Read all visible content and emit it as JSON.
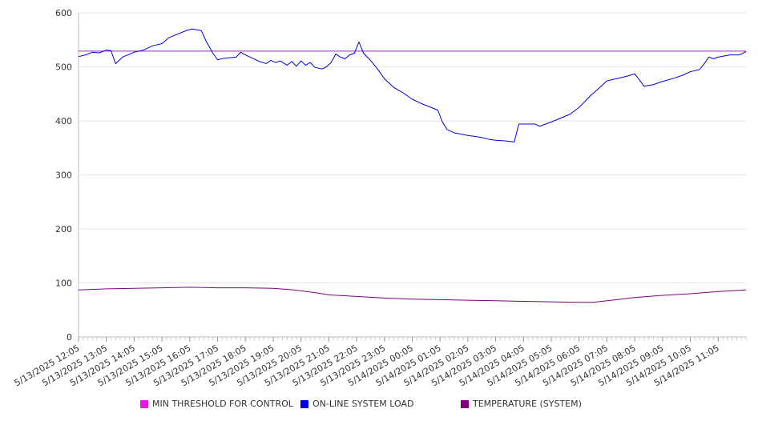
{
  "chart_data": {
    "type": "line",
    "title": "",
    "xlabel": "",
    "ylabel": "",
    "ylim": [
      0,
      600
    ],
    "y_ticks": [
      "0",
      "100",
      "200",
      "300",
      "400",
      "500",
      "600"
    ],
    "x_tick_labels": [
      "5/13/2025 12:05",
      "5/13/2025 13:05",
      "5/13/2025 14:05",
      "5/13/2025 15:05",
      "5/13/2025 16:05",
      "5/13/2025 17:05",
      "5/13/2025 18:05",
      "5/13/2025 19:05",
      "5/13/2025 20:05",
      "5/13/2025 21:05",
      "5/13/2025 22:05",
      "5/13/2025 23:05",
      "5/14/2025 00:05",
      "5/14/2025 01:05",
      "5/14/2025 02:05",
      "5/14/2025 03:05",
      "5/14/2025 04:05",
      "5/14/2025 05:05",
      "5/14/2025 06:05",
      "5/14/2025 07:05",
      "5/14/2025 08:05",
      "5/14/2025 09:05",
      "5/14/2025 10:05",
      "5/14/2025 11:05"
    ],
    "x_range": [
      "5/13/2025 12:05",
      "5/14/2025 12:05"
    ],
    "grid": true,
    "legend_position": "bottom",
    "series": [
      {
        "name": "MIN THRESHOLD FOR CONTROL",
        "color": "#a020c8",
        "swatch_color": "#ee11ee",
        "points": [
          [
            "5/13/2025 12:05",
            529
          ],
          [
            "5/14/2025 12:05",
            529
          ]
        ]
      },
      {
        "name": "ON-LINE SYSTEM LOAD",
        "color": "#0000dd",
        "swatch_color": "#0000ee",
        "points": [
          [
            "5/13/2025 12:05",
            519
          ],
          [
            "5/13/2025 12:20",
            522
          ],
          [
            "5/13/2025 12:35",
            527
          ],
          [
            "5/13/2025 12:50",
            526
          ],
          [
            "5/13/2025 13:05",
            531
          ],
          [
            "5/13/2025 13:15",
            530
          ],
          [
            "5/13/2025 13:25",
            506
          ],
          [
            "5/13/2025 13:40",
            518
          ],
          [
            "5/13/2025 14:05",
            527
          ],
          [
            "5/13/2025 14:25",
            531
          ],
          [
            "5/13/2025 14:45",
            539
          ],
          [
            "5/13/2025 15:05",
            543
          ],
          [
            "5/13/2025 15:20",
            554
          ],
          [
            "5/13/2025 15:40",
            561
          ],
          [
            "5/13/2025 16:00",
            568
          ],
          [
            "5/13/2025 16:10",
            570
          ],
          [
            "5/13/2025 16:30",
            567
          ],
          [
            "5/13/2025 16:40",
            548
          ],
          [
            "5/13/2025 16:55",
            525
          ],
          [
            "5/13/2025 17:05",
            513
          ],
          [
            "5/13/2025 17:20",
            516
          ],
          [
            "5/13/2025 17:45",
            518
          ],
          [
            "5/13/2025 17:55",
            527
          ],
          [
            "5/13/2025 18:05",
            522
          ],
          [
            "5/13/2025 18:20",
            516
          ],
          [
            "5/13/2025 18:35",
            510
          ],
          [
            "5/13/2025 18:50",
            506
          ],
          [
            "5/13/2025 19:00",
            512
          ],
          [
            "5/13/2025 19:10",
            508
          ],
          [
            "5/13/2025 19:20",
            511
          ],
          [
            "5/13/2025 19:35",
            503
          ],
          [
            "5/13/2025 19:45",
            510
          ],
          [
            "5/13/2025 19:55",
            501
          ],
          [
            "5/13/2025 20:05",
            511
          ],
          [
            "5/13/2025 20:15",
            503
          ],
          [
            "5/13/2025 20:25",
            508
          ],
          [
            "5/13/2025 20:35",
            499
          ],
          [
            "5/13/2025 20:50",
            496
          ],
          [
            "5/13/2025 21:00",
            500
          ],
          [
            "5/13/2025 21:10",
            508
          ],
          [
            "5/13/2025 21:20",
            524
          ],
          [
            "5/13/2025 21:30",
            518
          ],
          [
            "5/13/2025 21:40",
            515
          ],
          [
            "5/13/2025 21:50",
            522
          ],
          [
            "5/13/2025 22:00",
            525
          ],
          [
            "5/13/2025 22:10",
            546
          ],
          [
            "5/13/2025 22:20",
            525
          ],
          [
            "5/13/2025 22:35",
            512
          ],
          [
            "5/13/2025 22:50",
            496
          ],
          [
            "5/13/2025 23:05",
            478
          ],
          [
            "5/13/2025 23:25",
            462
          ],
          [
            "5/13/2025 23:45",
            452
          ],
          [
            "5/14/2025 00:05",
            440
          ],
          [
            "5/14/2025 00:25",
            432
          ],
          [
            "5/14/2025 00:45",
            425
          ],
          [
            "5/14/2025 01:00",
            420
          ],
          [
            "5/14/2025 01:10",
            398
          ],
          [
            "5/14/2025 01:20",
            384
          ],
          [
            "5/14/2025 01:35",
            378
          ],
          [
            "5/14/2025 02:05",
            373
          ],
          [
            "5/14/2025 02:30",
            370
          ],
          [
            "5/14/2025 02:50",
            366
          ],
          [
            "5/14/2025 03:05",
            364
          ],
          [
            "5/14/2025 03:25",
            363
          ],
          [
            "5/14/2025 03:45",
            361
          ],
          [
            "5/14/2025 03:55",
            394
          ],
          [
            "5/14/2025 04:05",
            394
          ],
          [
            "5/14/2025 04:30",
            394
          ],
          [
            "5/14/2025 04:40",
            390
          ],
          [
            "5/14/2025 05:05",
            398
          ],
          [
            "5/14/2025 05:25",
            405
          ],
          [
            "5/14/2025 05:45",
            412
          ],
          [
            "5/14/2025 06:05",
            425
          ],
          [
            "5/14/2025 06:30",
            447
          ],
          [
            "5/14/2025 06:50",
            462
          ],
          [
            "5/14/2025 07:05",
            474
          ],
          [
            "5/14/2025 07:25",
            478
          ],
          [
            "5/14/2025 07:50",
            483
          ],
          [
            "5/14/2025 08:05",
            487
          ],
          [
            "5/14/2025 08:15",
            476
          ],
          [
            "5/14/2025 08:25",
            464
          ],
          [
            "5/14/2025 08:45",
            467
          ],
          [
            "5/14/2025 09:05",
            473
          ],
          [
            "5/14/2025 09:30",
            479
          ],
          [
            "5/14/2025 09:50",
            485
          ],
          [
            "5/14/2025 10:05",
            491
          ],
          [
            "5/14/2025 10:25",
            495
          ],
          [
            "5/14/2025 10:35",
            506
          ],
          [
            "5/14/2025 10:45",
            518
          ],
          [
            "5/14/2025 10:55",
            515
          ],
          [
            "5/14/2025 11:05",
            518
          ],
          [
            "5/14/2025 11:30",
            522
          ],
          [
            "5/14/2025 11:50",
            522
          ],
          [
            "5/14/2025 12:05",
            528
          ]
        ]
      },
      {
        "name": "TEMPERATURE (SYSTEM)",
        "color": "#800080",
        "swatch_color": "#800080",
        "points": [
          [
            "5/13/2025 12:05",
            87
          ],
          [
            "5/13/2025 13:05",
            89
          ],
          [
            "5/13/2025 14:05",
            90
          ],
          [
            "5/13/2025 15:05",
            91
          ],
          [
            "5/13/2025 16:05",
            92
          ],
          [
            "5/13/2025 17:05",
            91
          ],
          [
            "5/13/2025 18:05",
            91
          ],
          [
            "5/13/2025 19:05",
            90
          ],
          [
            "5/13/2025 19:50",
            87
          ],
          [
            "5/13/2025 20:35",
            82
          ],
          [
            "5/13/2025 21:05",
            78
          ],
          [
            "5/13/2025 22:05",
            75
          ],
          [
            "5/13/2025 23:05",
            72
          ],
          [
            "5/14/2025 00:05",
            70
          ],
          [
            "5/14/2025 01:05",
            69
          ],
          [
            "5/14/2025 02:05",
            68
          ],
          [
            "5/14/2025 03:05",
            67
          ],
          [
            "5/14/2025 04:05",
            66
          ],
          [
            "5/14/2025 05:05",
            65
          ],
          [
            "5/14/2025 06:05",
            64
          ],
          [
            "5/14/2025 06:35",
            64
          ],
          [
            "5/14/2025 07:05",
            67
          ],
          [
            "5/14/2025 08:05",
            73
          ],
          [
            "5/14/2025 09:05",
            77
          ],
          [
            "5/14/2025 10:05",
            80
          ],
          [
            "5/14/2025 11:05",
            84
          ],
          [
            "5/14/2025 12:05",
            87
          ]
        ]
      }
    ]
  }
}
